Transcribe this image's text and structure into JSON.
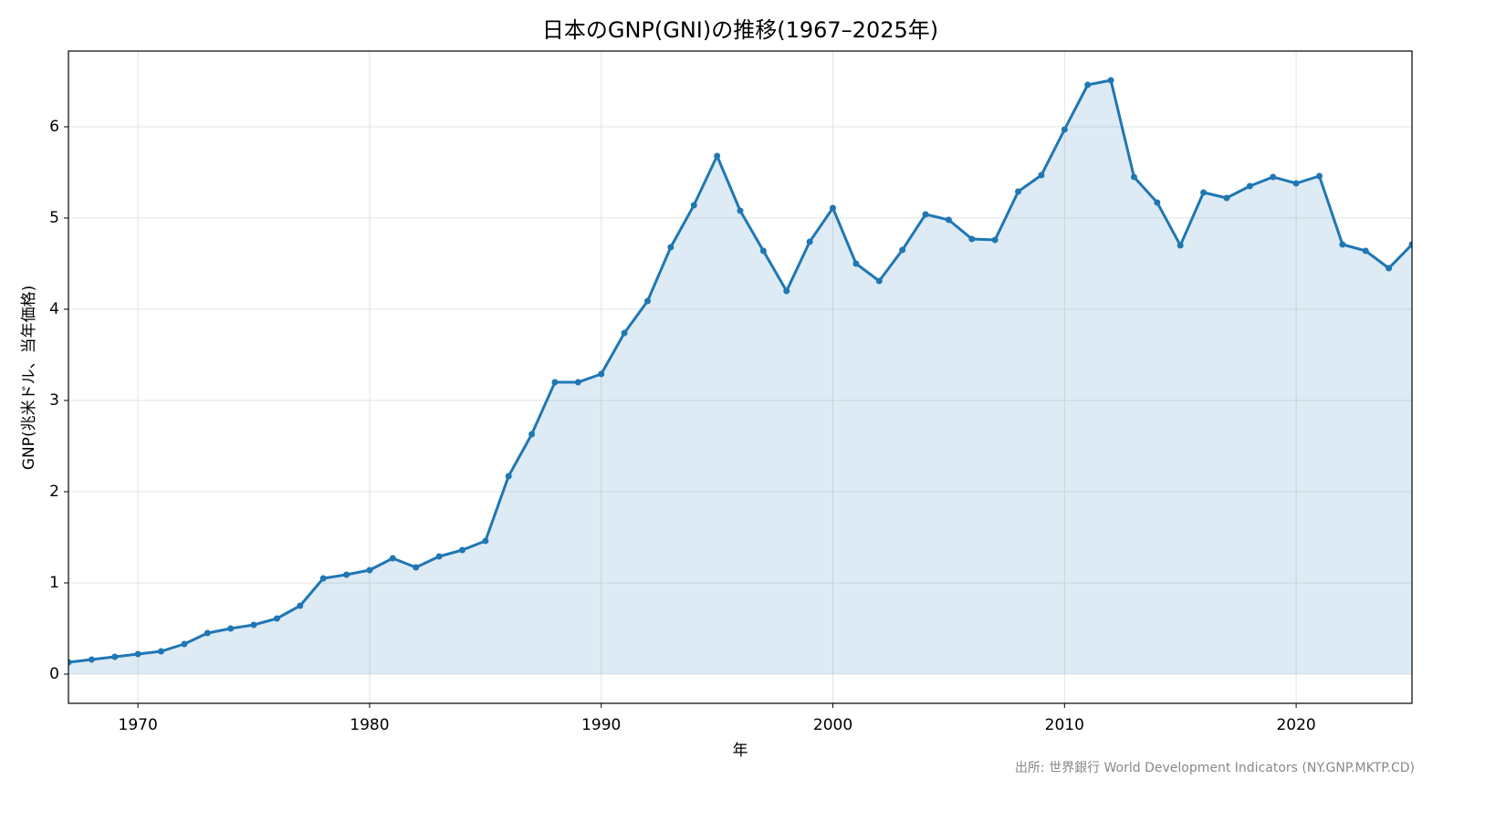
{
  "chart_data": {
    "type": "line",
    "title": "日本のGNP(GNI)の推移(1967–2025年)",
    "x_label": "年",
    "y_label": "GNP(兆米ドル、当年価格)",
    "source": "出所: 世界銀行 World Development Indicators (NY.GNP.MKTP.CD)",
    "x": [
      1967,
      1968,
      1969,
      1970,
      1971,
      1972,
      1973,
      1974,
      1975,
      1976,
      1977,
      1978,
      1979,
      1980,
      1981,
      1982,
      1983,
      1984,
      1985,
      1986,
      1987,
      1988,
      1989,
      1990,
      1991,
      1992,
      1993,
      1994,
      1995,
      1996,
      1997,
      1998,
      1999,
      2000,
      2001,
      2002,
      2003,
      2004,
      2005,
      2006,
      2007,
      2008,
      2009,
      2010,
      2011,
      2012,
      2013,
      2014,
      2015,
      2016,
      2017,
      2018,
      2019,
      2020,
      2021,
      2022,
      2023,
      2024,
      2025
    ],
    "series": [
      {
        "name": "GNP",
        "color": "#1f77b4",
        "values": [
          0.13,
          0.16,
          0.19,
          0.22,
          0.25,
          0.33,
          0.45,
          0.5,
          0.54,
          0.61,
          0.75,
          1.05,
          1.09,
          1.14,
          1.27,
          1.17,
          1.29,
          1.36,
          1.46,
          2.17,
          2.63,
          3.2,
          3.2,
          3.29,
          3.74,
          4.09,
          4.68,
          5.14,
          5.68,
          5.08,
          4.64,
          4.2,
          4.74,
          5.11,
          4.5,
          4.31,
          4.65,
          5.04,
          4.98,
          4.77,
          4.76,
          5.29,
          5.47,
          5.97,
          6.46,
          6.51,
          5.45,
          5.17,
          4.7,
          5.28,
          5.22,
          5.35,
          5.45,
          5.38,
          5.46,
          4.71,
          4.64,
          4.45,
          4.71
        ]
      }
    ],
    "xlim": [
      1967,
      2025
    ],
    "xticks": [
      1970,
      1980,
      1990,
      2000,
      2010,
      2020
    ],
    "ylim": [
      -0.32,
      6.83
    ],
    "yticks": [
      0,
      1,
      2,
      3,
      4,
      5,
      6
    ],
    "grid": true,
    "fill": true
  }
}
